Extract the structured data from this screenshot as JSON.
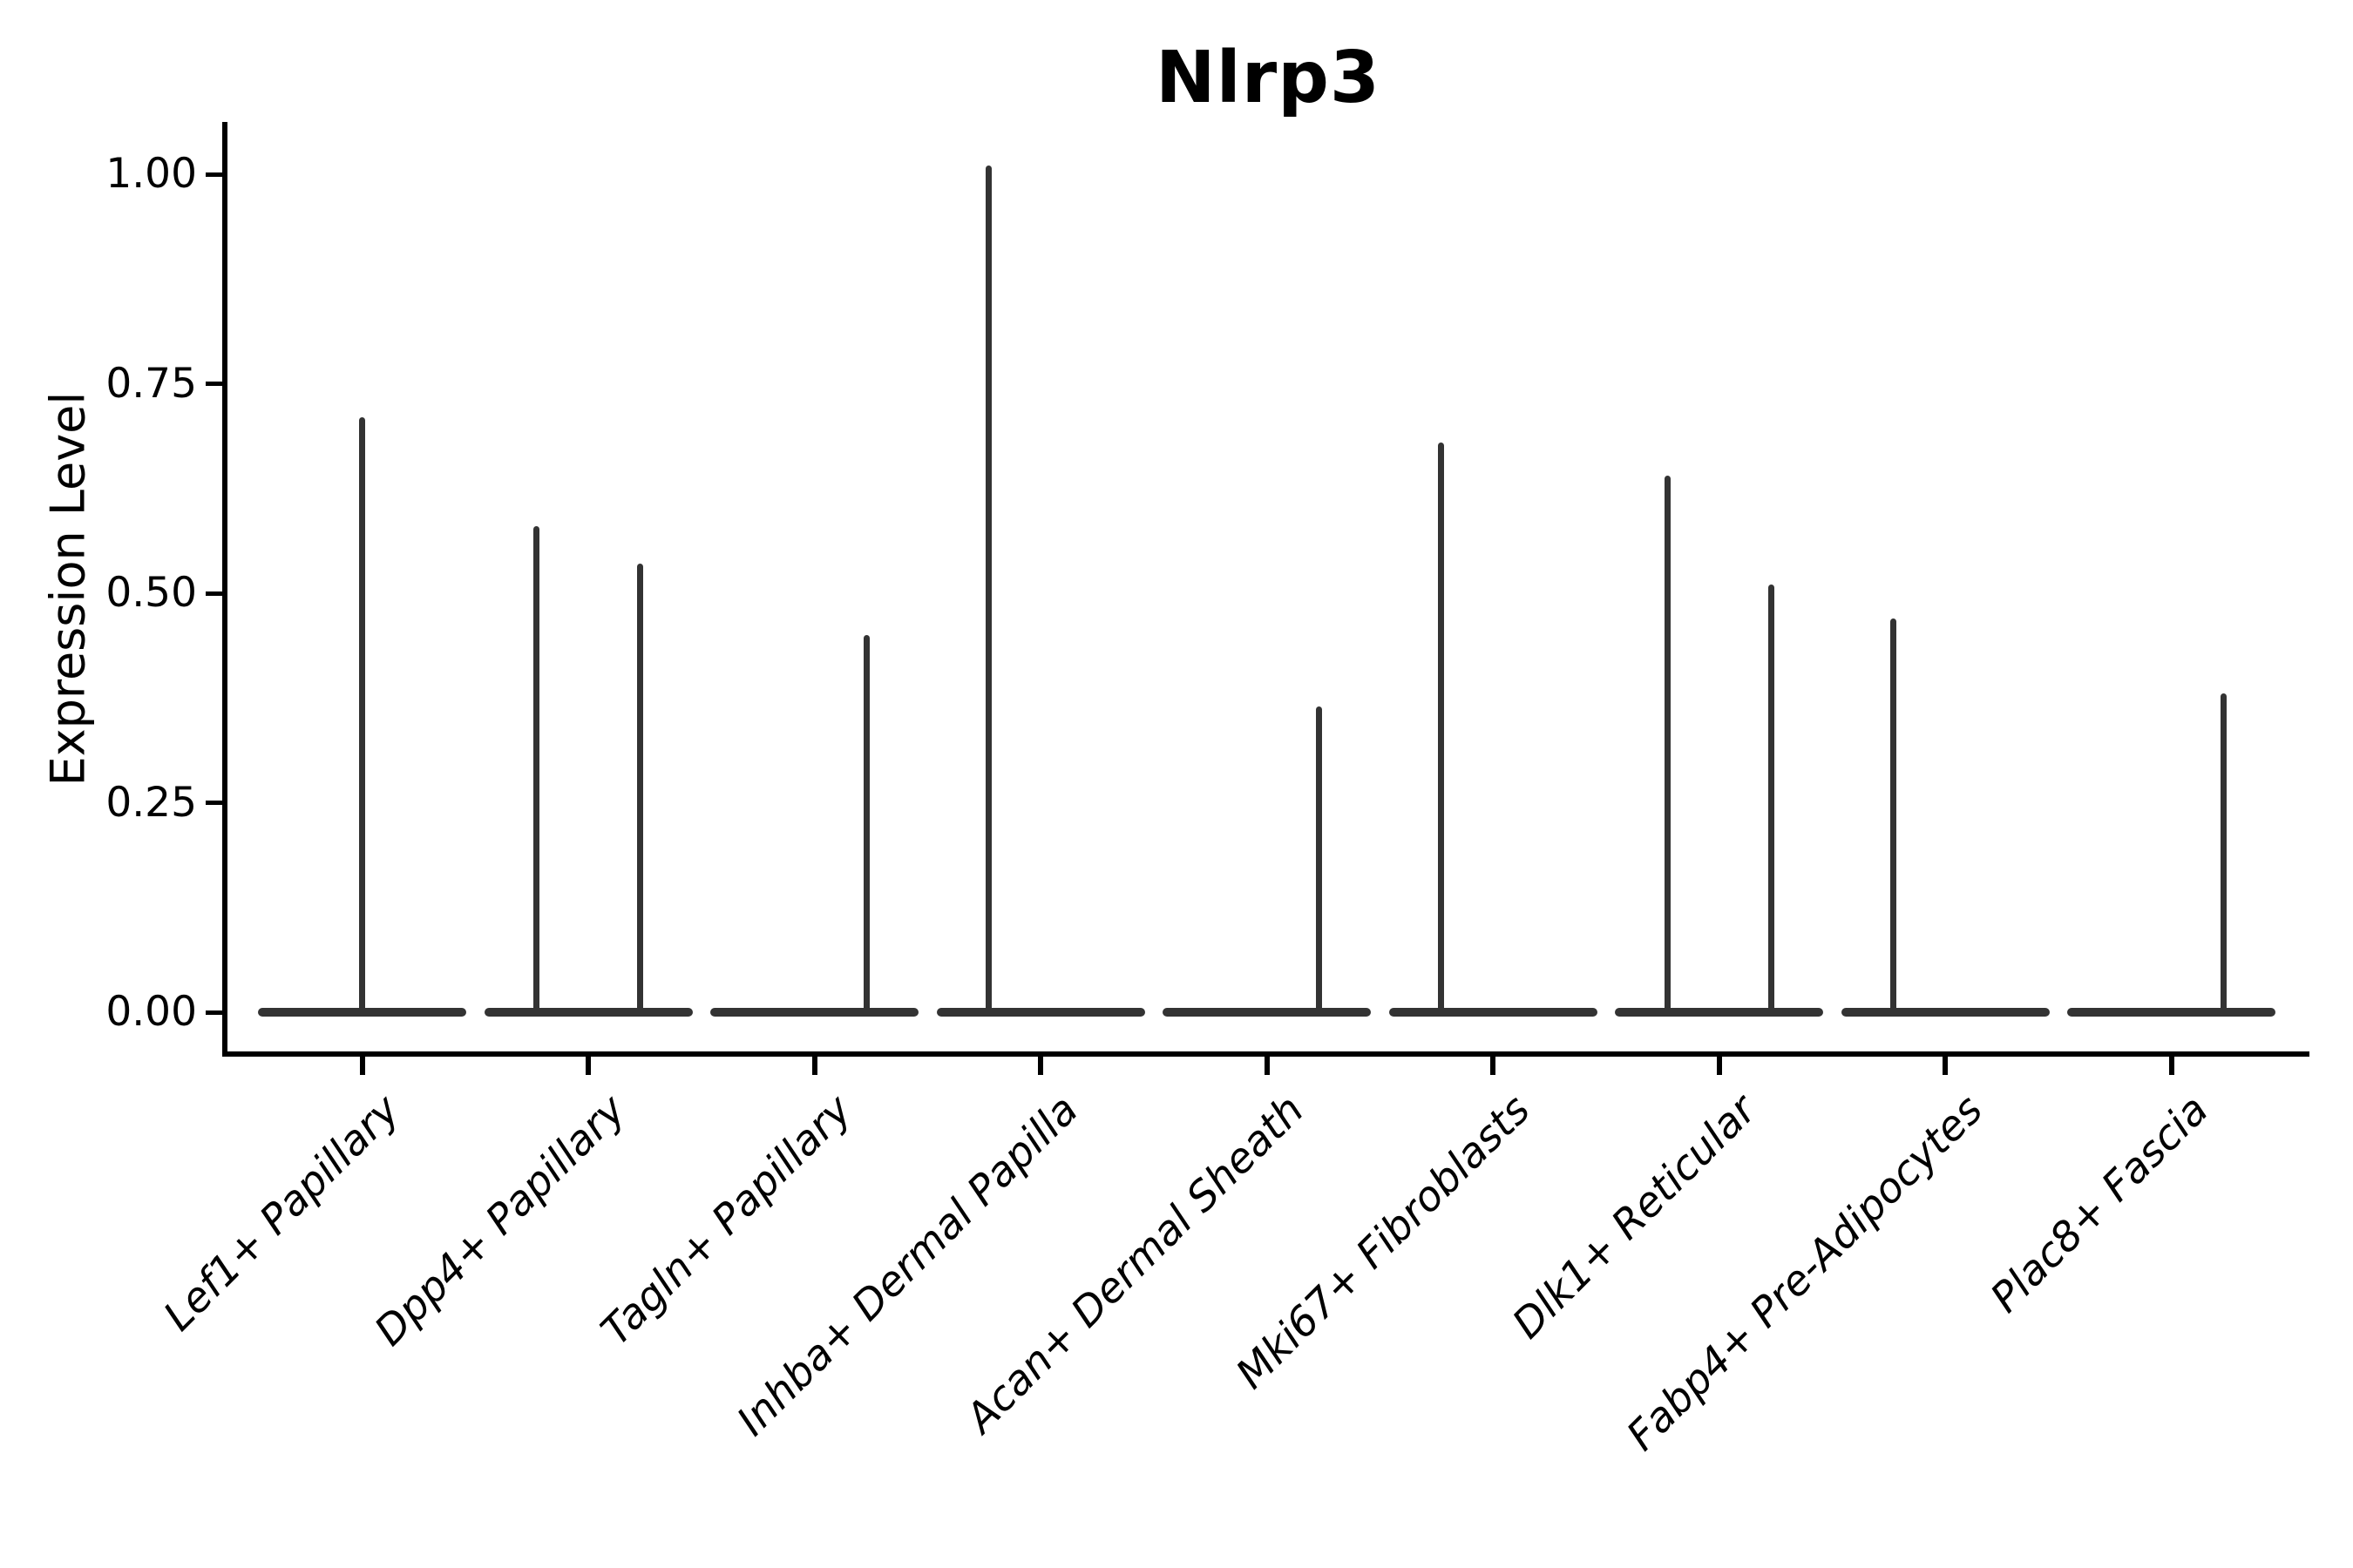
{
  "title": "Nlrp3",
  "y_axis": {
    "label": "Expression Level"
  },
  "chart_data": {
    "type": "violin",
    "title": "Nlrp3",
    "xlabel": "",
    "ylabel": "Expression Level",
    "ylim": [
      -0.05,
      1.06
    ],
    "yticks": [
      1.0,
      0.75,
      0.5,
      0.25,
      0.0
    ],
    "ytick_labels": [
      "1.00",
      "0.75",
      "0.50",
      "0.25",
      "0.00"
    ],
    "grid": false,
    "legend": "none",
    "categories": [
      "Lef1+ Papillary",
      "Dpp4+ Papillary",
      "Tagln+ Papillary",
      "Inhba+ Dermal Papilla",
      "Acan+ Dermal Sheath",
      "Mki67+ Fibroblasts",
      "Dlk1+ Reticular",
      "Fabp4+ Pre-Adipocytes",
      "Plac8+ Fascia"
    ],
    "violins": [
      {
        "category": "Lef1+ Papillary",
        "baseline_value": 0.0,
        "spikes": [
          {
            "position": "center",
            "max_expression": 0.71
          }
        ]
      },
      {
        "category": "Dpp4+ Papillary",
        "baseline_value": 0.0,
        "spikes": [
          {
            "position": "left",
            "max_expression": 0.58
          },
          {
            "position": "right",
            "max_expression": 0.535
          }
        ]
      },
      {
        "category": "Tagln+ Papillary",
        "baseline_value": 0.0,
        "spikes": [
          {
            "position": "right",
            "max_expression": 0.45
          }
        ]
      },
      {
        "category": "Inhba+ Dermal Papilla",
        "baseline_value": 0.0,
        "spikes": [
          {
            "position": "left",
            "max_expression": 1.01
          }
        ]
      },
      {
        "category": "Acan+ Dermal Sheath",
        "baseline_value": 0.0,
        "spikes": [
          {
            "position": "right",
            "max_expression": 0.365
          }
        ]
      },
      {
        "category": "Mki67+ Fibroblasts",
        "baseline_value": 0.0,
        "spikes": [
          {
            "position": "left",
            "max_expression": 0.68
          }
        ]
      },
      {
        "category": "Dlk1+ Reticular",
        "baseline_value": 0.0,
        "spikes": [
          {
            "position": "left",
            "max_expression": 0.64
          },
          {
            "position": "right",
            "max_expression": 0.51
          }
        ]
      },
      {
        "category": "Fabp4+ Pre-Adipocytes",
        "baseline_value": 0.0,
        "spikes": [
          {
            "position": "left",
            "max_expression": 0.47
          }
        ]
      },
      {
        "category": "Plac8+ Fascia",
        "baseline_value": 0.0,
        "spikes": [
          {
            "position": "right",
            "max_expression": 0.38
          }
        ]
      }
    ],
    "colors": {
      "violin": "#333333",
      "axis": "#000000",
      "text": "#000000",
      "background": "#ffffff"
    }
  }
}
